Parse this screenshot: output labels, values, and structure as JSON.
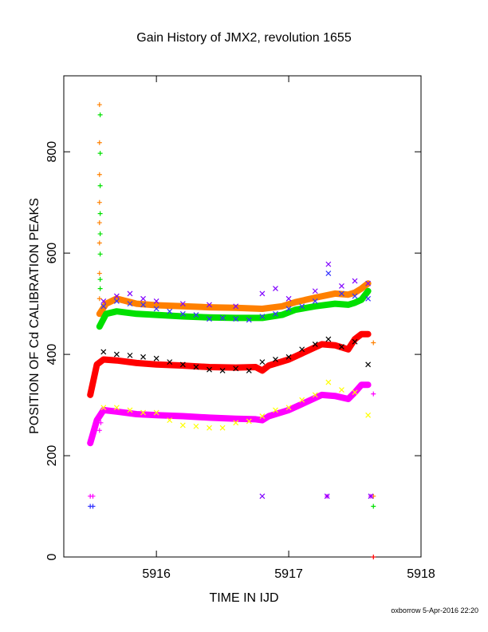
{
  "chart_data": {
    "type": "scatter",
    "title": "Gain History of JMX2, revolution 1655",
    "xlabel": "TIME IN IJD",
    "ylabel": "POSITION OF Cd CALIBRATION PEAKS",
    "xlim": [
      5915.3,
      5918.0
    ],
    "ylim": [
      0,
      950
    ],
    "xticks": [
      5916,
      5917,
      5918
    ],
    "yticks": [
      0,
      200,
      400,
      600,
      800
    ],
    "grid": false,
    "legend": "none",
    "footer": "oxborrow  5-Apr-2016 22:20",
    "colors": {
      "orange": "#ff8000",
      "green": "#00e000",
      "blue": "#3333ff",
      "purple": "#8000ff",
      "black": "#000000",
      "red": "#ff0000",
      "yellow": "#ffff00",
      "magenta": "#ff00ff"
    },
    "series": [
      {
        "color": "orange",
        "kind": "line",
        "x": [
          5915.57,
          5915.62,
          5915.7,
          5915.85,
          5916.0,
          5916.2,
          5916.4,
          5916.6,
          5916.8,
          5916.95,
          5917.05,
          5917.2,
          5917.35,
          5917.45,
          5917.5,
          5917.55,
          5917.6
        ],
        "y": [
          480,
          500,
          510,
          500,
          497,
          495,
          493,
          492,
          490,
          495,
          503,
          512,
          520,
          518,
          522,
          530,
          540
        ]
      },
      {
        "color": "green",
        "kind": "line",
        "x": [
          5915.57,
          5915.62,
          5915.7,
          5915.85,
          5916.0,
          5916.2,
          5916.4,
          5916.6,
          5916.8,
          5916.95,
          5917.05,
          5917.2,
          5917.35,
          5917.45,
          5917.5,
          5917.55,
          5917.6
        ],
        "y": [
          455,
          480,
          485,
          480,
          478,
          475,
          473,
          472,
          472,
          478,
          488,
          495,
          500,
          498,
          502,
          508,
          525
        ]
      },
      {
        "color": "red",
        "kind": "line",
        "x": [
          5915.5,
          5915.55,
          5915.6,
          5915.7,
          5915.85,
          5916.0,
          5916.2,
          5916.4,
          5916.6,
          5916.75,
          5916.8,
          5916.85,
          5917.0,
          5917.15,
          5917.25,
          5917.35,
          5917.45,
          5917.5,
          5917.55,
          5917.6
        ],
        "y": [
          320,
          380,
          390,
          388,
          383,
          380,
          378,
          375,
          374,
          375,
          368,
          378,
          390,
          408,
          420,
          418,
          410,
          430,
          440,
          440
        ]
      },
      {
        "color": "magenta",
        "kind": "line",
        "x": [
          5915.5,
          5915.55,
          5915.6,
          5915.7,
          5915.85,
          5916.0,
          5916.2,
          5916.4,
          5916.6,
          5916.75,
          5916.8,
          5916.85,
          5917.0,
          5917.15,
          5917.25,
          5917.35,
          5917.45,
          5917.5,
          5917.55,
          5917.6
        ],
        "y": [
          225,
          270,
          290,
          287,
          282,
          280,
          278,
          275,
          273,
          272,
          270,
          278,
          290,
          308,
          320,
          318,
          312,
          325,
          340,
          340
        ]
      },
      {
        "color": "blue",
        "kind": "scatter",
        "x": [
          5915.6,
          5915.7,
          5915.8,
          5915.9,
          5916.0,
          5916.1,
          5916.2,
          5916.3,
          5916.4,
          5916.5,
          5916.6,
          5916.7,
          5916.8,
          5916.9,
          5917.0,
          5917.1,
          5917.2,
          5917.3,
          5917.4,
          5917.5,
          5917.6
        ],
        "y": [
          495,
          505,
          500,
          498,
          490,
          485,
          480,
          478,
          470,
          472,
          470,
          468,
          475,
          480,
          490,
          495,
          505,
          560,
          520,
          515,
          510
        ]
      },
      {
        "color": "purple",
        "kind": "scatter",
        "x": [
          5915.6,
          5915.7,
          5915.8,
          5915.9,
          5916.0,
          5916.2,
          5916.4,
          5916.6,
          5916.8,
          5916.9,
          5917.0,
          5917.2,
          5917.3,
          5917.4,
          5917.5,
          5917.6
        ],
        "y": [
          505,
          515,
          520,
          510,
          505,
          500,
          498,
          495,
          520,
          530,
          510,
          525,
          578,
          535,
          545,
          540
        ]
      },
      {
        "color": "black",
        "kind": "scatter",
        "x": [
          5915.6,
          5915.7,
          5915.8,
          5915.9,
          5916.0,
          5916.1,
          5916.2,
          5916.3,
          5916.4,
          5916.5,
          5916.6,
          5916.7,
          5916.8,
          5916.9,
          5917.0,
          5917.1,
          5917.2,
          5917.3,
          5917.4,
          5917.5,
          5917.6
        ],
        "y": [
          405,
          400,
          398,
          395,
          392,
          385,
          380,
          375,
          370,
          368,
          372,
          368,
          385,
          390,
          395,
          410,
          420,
          430,
          415,
          425,
          380
        ]
      },
      {
        "color": "yellow",
        "kind": "scatter",
        "x": [
          5915.6,
          5915.7,
          5915.8,
          5915.9,
          5916.0,
          5916.1,
          5916.2,
          5916.3,
          5916.4,
          5916.5,
          5916.6,
          5916.7,
          5916.8,
          5916.9,
          5917.0,
          5917.1,
          5917.2,
          5917.3,
          5917.4,
          5917.5,
          5917.6
        ],
        "y": [
          295,
          295,
          290,
          285,
          285,
          270,
          260,
          258,
          255,
          255,
          265,
          268,
          278,
          290,
          295,
          310,
          320,
          345,
          330,
          325,
          280
        ]
      },
      {
        "color": "orange",
        "kind": "plus",
        "x": [
          5915.57,
          5915.57,
          5915.57,
          5915.57,
          5915.57,
          5915.57,
          5915.57,
          5915.57,
          5917.64,
          5917.64
        ],
        "y": [
          893,
          818,
          755,
          700,
          660,
          620,
          560,
          510,
          423,
          120
        ]
      },
      {
        "color": "green",
        "kind": "plus",
        "x": [
          5915.575,
          5915.575,
          5915.575,
          5915.575,
          5915.575,
          5915.575,
          5915.575,
          5915.575,
          5915.575,
          5917.64
        ],
        "y": [
          873,
          797,
          733,
          678,
          638,
          598,
          548,
          530,
          455,
          100
        ]
      },
      {
        "color": "magenta",
        "kind": "plus",
        "x": [
          5915.57,
          5915.58,
          5917.64,
          5915.5,
          5915.52,
          5917.29,
          5917.62
        ],
        "y": [
          250,
          265,
          322,
          120,
          120,
          120,
          120
        ]
      },
      {
        "color": "blue",
        "kind": "plus",
        "x": [
          5915.5,
          5915.52
        ],
        "y": [
          100,
          100
        ]
      },
      {
        "color": "purple",
        "kind": "scatter",
        "x": [
          5916.8,
          5917.29,
          5917.62
        ],
        "y": [
          120,
          120,
          120
        ]
      },
      {
        "color": "red",
        "kind": "plus",
        "x": [
          5917.64
        ],
        "y": [
          0
        ]
      }
    ]
  }
}
